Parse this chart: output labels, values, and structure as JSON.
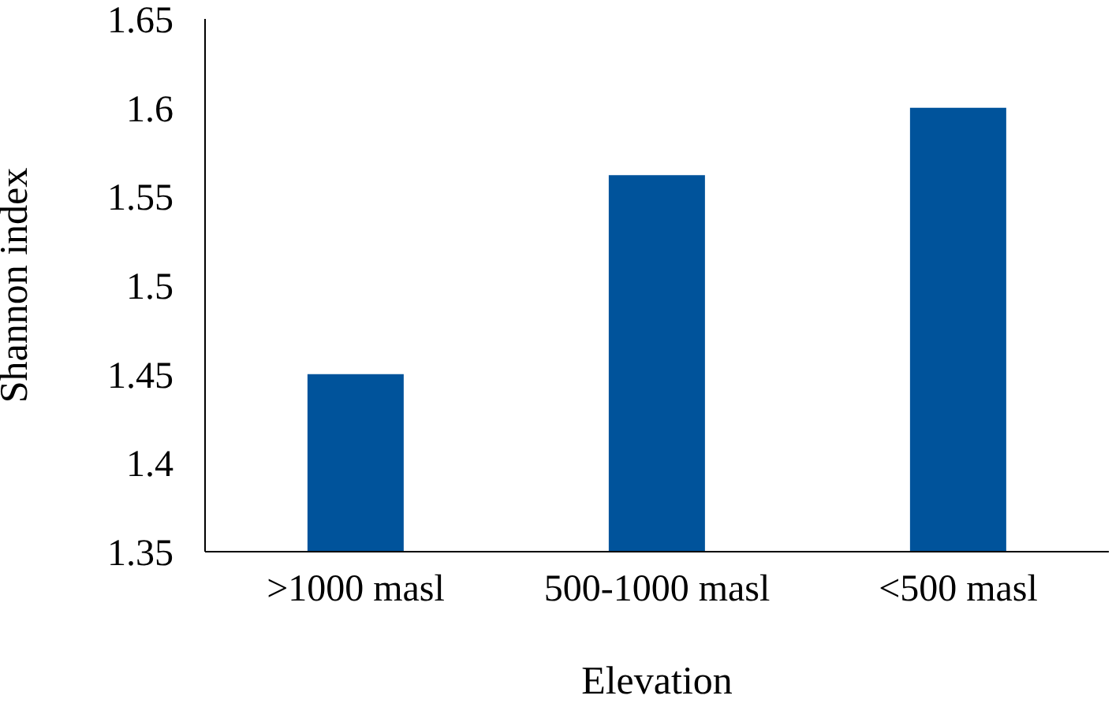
{
  "chart_data": {
    "type": "bar",
    "xlabel": "Elevation",
    "ylabel": "Shannon index",
    "categories": [
      ">1000 masl",
      "500-1000 masl",
      "<500 masl"
    ],
    "values": [
      1.45,
      1.562,
      1.6
    ],
    "color": "#00539b",
    "ylim": [
      1.35,
      1.65
    ],
    "yticks": [
      1.35,
      1.4,
      1.45,
      1.5,
      1.55,
      1.6,
      1.65
    ],
    "grid": false,
    "legend": false
  }
}
